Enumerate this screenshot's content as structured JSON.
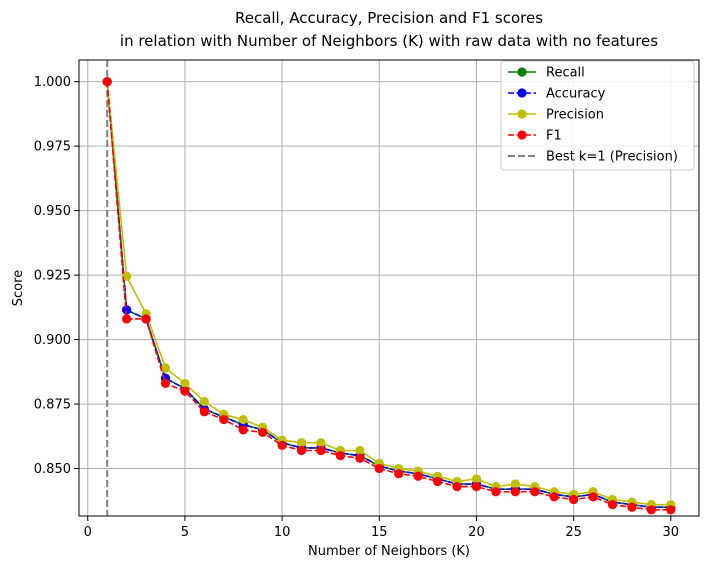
{
  "chart_data": {
    "type": "line",
    "title_line1": "Recall, Accuracy, Precision and F1 scores",
    "title_line2": "in relation with Number of Neighbors (K) with raw data with no features",
    "xlabel": "Number of Neighbors (K)",
    "ylabel": "Score",
    "xlim": [
      -0.45,
      31.45
    ],
    "ylim": [
      0.8316,
      1.0084
    ],
    "x_ticks": [
      0,
      5,
      10,
      15,
      20,
      25,
      30
    ],
    "y_ticks": [
      0.85,
      0.875,
      0.9,
      0.925,
      0.95,
      0.975,
      1.0
    ],
    "x_tick_labels": [
      "0",
      "5",
      "10",
      "15",
      "20",
      "25",
      "30"
    ],
    "y_tick_labels": [
      "0.850",
      "0.875",
      "0.900",
      "0.925",
      "0.950",
      "0.975",
      "1.000"
    ],
    "grid": true,
    "legend_position": "top-right",
    "x": [
      1,
      2,
      3,
      4,
      5,
      6,
      7,
      8,
      9,
      10,
      11,
      12,
      13,
      14,
      15,
      16,
      17,
      18,
      19,
      20,
      21,
      22,
      23,
      24,
      25,
      26,
      27,
      28,
      29,
      30
    ],
    "series": [
      {
        "name": "Recall",
        "color": "#008000",
        "dash": "solid",
        "values": [
          1.0,
          0.9115,
          0.908,
          0.885,
          0.881,
          0.873,
          0.87,
          0.867,
          0.865,
          0.86,
          0.858,
          0.858,
          0.856,
          0.855,
          0.851,
          0.849,
          0.848,
          0.846,
          0.844,
          0.844,
          0.842,
          0.842,
          0.842,
          0.84,
          0.839,
          0.84,
          0.837,
          0.836,
          0.835,
          0.835
        ]
      },
      {
        "name": "Accuracy",
        "color": "#0000ff",
        "dash": "dashed",
        "values": [
          1.0,
          0.9115,
          0.908,
          0.885,
          0.881,
          0.873,
          0.87,
          0.867,
          0.865,
          0.86,
          0.858,
          0.858,
          0.856,
          0.855,
          0.851,
          0.849,
          0.848,
          0.846,
          0.844,
          0.844,
          0.842,
          0.842,
          0.842,
          0.84,
          0.839,
          0.84,
          0.837,
          0.836,
          0.835,
          0.835
        ]
      },
      {
        "name": "Precision",
        "color": "#bfbf00",
        "dash": "solid",
        "values": [
          1.0,
          0.9245,
          0.91,
          0.889,
          0.883,
          0.876,
          0.871,
          0.869,
          0.866,
          0.861,
          0.86,
          0.86,
          0.857,
          0.857,
          0.852,
          0.85,
          0.849,
          0.847,
          0.845,
          0.846,
          0.843,
          0.844,
          0.843,
          0.841,
          0.84,
          0.841,
          0.838,
          0.837,
          0.836,
          0.836
        ]
      },
      {
        "name": "F1",
        "color": "#ff0000",
        "dash": "dashed",
        "values": [
          1.0,
          0.908,
          0.908,
          0.883,
          0.88,
          0.872,
          0.869,
          0.865,
          0.864,
          0.859,
          0.857,
          0.857,
          0.855,
          0.854,
          0.85,
          0.848,
          0.847,
          0.845,
          0.843,
          0.843,
          0.841,
          0.841,
          0.841,
          0.839,
          0.838,
          0.839,
          0.836,
          0.835,
          0.834,
          0.834
        ]
      }
    ],
    "reference_line": {
      "name": "Best k=1 (Precision)",
      "x": 1,
      "color": "#808080",
      "dash": "dashed"
    }
  }
}
